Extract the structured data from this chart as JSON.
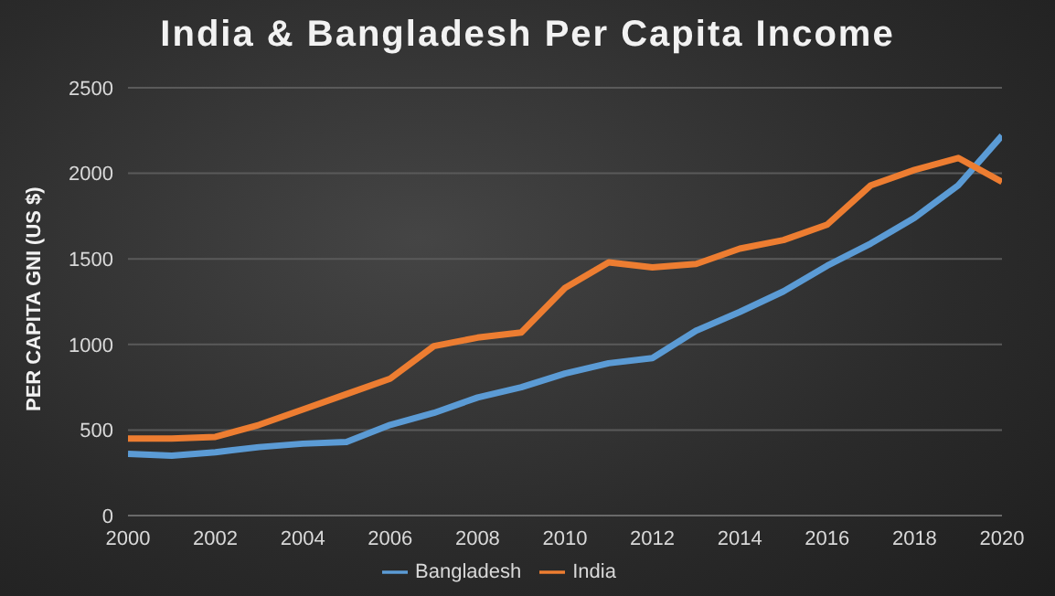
{
  "chart_data": {
    "type": "line",
    "title": "India & Bangladesh Per Capita Income",
    "ylabel": "PER CAPITA GNI (US $)",
    "x": [
      2000,
      2001,
      2002,
      2003,
      2004,
      2005,
      2006,
      2007,
      2008,
      2009,
      2010,
      2011,
      2012,
      2013,
      2014,
      2015,
      2016,
      2017,
      2018,
      2019,
      2020
    ],
    "series": [
      {
        "name": "Bangladesh",
        "color": "#5b9bd5",
        "values": [
          360,
          350,
          370,
          400,
          420,
          430,
          530,
          600,
          690,
          750,
          830,
          890,
          920,
          1080,
          1190,
          1310,
          1460,
          1590,
          1740,
          1930,
          2220
        ]
      },
      {
        "name": "India",
        "color": "#ed7d31",
        "values": [
          450,
          450,
          460,
          530,
          620,
          710,
          800,
          990,
          1040,
          1070,
          1330,
          1480,
          1450,
          1470,
          1560,
          1610,
          1700,
          1930,
          2020,
          2090,
          1950
        ]
      }
    ],
    "xlim": [
      2000,
      2020
    ],
    "xticks": [
      2000,
      2002,
      2004,
      2006,
      2008,
      2010,
      2012,
      2014,
      2016,
      2018,
      2020
    ],
    "ylim": [
      0,
      2500
    ],
    "yticks": [
      0,
      500,
      1000,
      1500,
      2000,
      2500
    ],
    "grid": "y",
    "legend": "bottom",
    "marker": "none",
    "line_style": "solid"
  }
}
